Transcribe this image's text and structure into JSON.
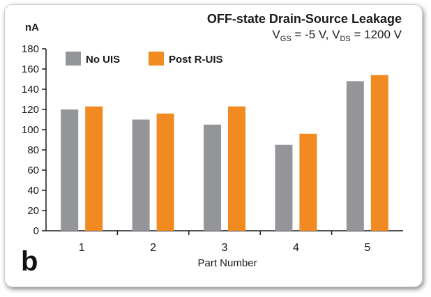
{
  "chart_data": {
    "type": "bar",
    "title": "OFF-state Drain-Source Leakage",
    "subtitle": {
      "p1": "V",
      "p1_sub": "GS",
      "p2": " = -5 V, V",
      "p2_sub": "DS",
      "p3": " = 1200 V"
    },
    "ylabel": "nA",
    "xlabel": "Part Number",
    "panel_label": "b",
    "categories": [
      "1",
      "2",
      "3",
      "4",
      "5"
    ],
    "ylim": [
      0,
      180
    ],
    "yticks": [
      0,
      20,
      40,
      60,
      80,
      100,
      120,
      140,
      160,
      180
    ],
    "grid": false,
    "legend_position": "top-left",
    "series": [
      {
        "name": "No UIS",
        "color": "#939598",
        "values": [
          120,
          110,
          105,
          85,
          148
        ]
      },
      {
        "name": "Post R-UIS",
        "color": "#f18a21",
        "values": [
          123,
          116,
          123,
          96,
          154
        ]
      }
    ]
  }
}
